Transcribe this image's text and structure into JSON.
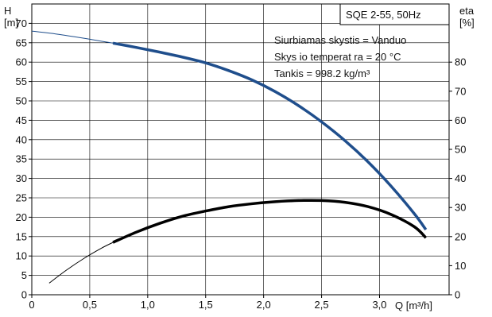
{
  "chart_data": {
    "type": "line",
    "title": "SQE 2-55, 50Hz",
    "annotations": [
      "Siurbiamas skystis = Vanduo",
      "Skys io temperat ra = 20 °C",
      "Tankis = 998.2 kg/m³"
    ],
    "xlabel": "Q [m³/h]",
    "ylabel_left": [
      "H",
      "[m]"
    ],
    "ylabel_right": [
      "eta",
      "[%]"
    ],
    "xlim": [
      0,
      3.6
    ],
    "ylim_left": [
      0,
      75
    ],
    "ylim_right": [
      0,
      100
    ],
    "x_ticks": [
      "0",
      "0,5",
      "1,0",
      "1,5",
      "2,0",
      "2,5",
      "3,0"
    ],
    "x_tick_values": [
      0,
      0.5,
      1.0,
      1.5,
      2.0,
      2.5,
      3.0
    ],
    "y_left_ticks": [
      0,
      5,
      10,
      15,
      20,
      25,
      30,
      35,
      40,
      45,
      50,
      55,
      60,
      65,
      70
    ],
    "y_right_ticks": [
      0,
      10,
      20,
      30,
      40,
      50,
      60,
      70,
      80
    ],
    "grid": true,
    "series": [
      {
        "id": "head",
        "axis": "left",
        "color": "#1f4e8c",
        "thin_x": [
          0.0,
          0.2,
          0.4,
          0.6,
          0.7
        ],
        "thin_y": [
          68.0,
          67.3,
          66.4,
          65.4,
          64.9
        ],
        "x": [
          0.7,
          0.9,
          1.1,
          1.3,
          1.5,
          1.7,
          1.9,
          2.1,
          2.3,
          2.5,
          2.7,
          2.9,
          3.1,
          3.3,
          3.4
        ],
        "y": [
          64.9,
          63.8,
          62.6,
          61.3,
          59.8,
          57.8,
          55.4,
          52.4,
          48.8,
          44.6,
          39.8,
          34.3,
          28.0,
          20.9,
          16.8
        ]
      },
      {
        "id": "efficiency",
        "axis": "right",
        "color": "#000000",
        "thin_x": [
          0.15,
          0.3,
          0.45,
          0.6,
          0.7
        ],
        "thin_y": [
          4.0,
          8.5,
          12.5,
          16.0,
          18.0
        ],
        "x": [
          0.7,
          0.9,
          1.1,
          1.3,
          1.5,
          1.7,
          1.9,
          2.1,
          2.3,
          2.5,
          2.7,
          2.9,
          3.1,
          3.3,
          3.4
        ],
        "y": [
          18.0,
          21.5,
          24.5,
          27.0,
          28.8,
          30.3,
          31.3,
          32.0,
          32.4,
          32.4,
          31.8,
          30.3,
          27.6,
          23.4,
          19.6
        ]
      }
    ]
  }
}
